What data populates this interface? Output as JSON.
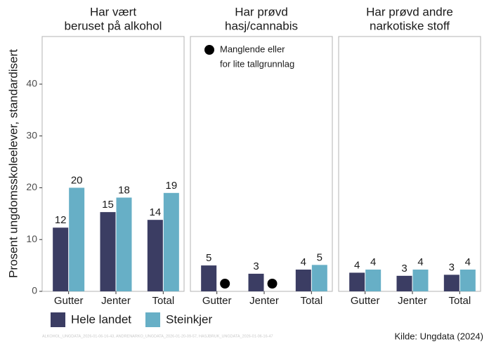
{
  "chart_data": [
    {
      "type": "bar",
      "title": [
        "Har vært",
        "beruset på alkohol"
      ],
      "categories": [
        "Gutter",
        "Jenter",
        "Total"
      ],
      "series": [
        {
          "name": "Hele landet",
          "color": "#3b3d63",
          "values": [
            12.3,
            15.3,
            13.8
          ],
          "value_labels": [
            "12",
            "15",
            "14"
          ]
        },
        {
          "name": "Steinkjer",
          "color": "#67afc6",
          "values": [
            20,
            18.1,
            19
          ],
          "value_labels": [
            "20",
            "18",
            "19"
          ]
        }
      ],
      "ylim": [
        0,
        49.2
      ],
      "yticks": [
        0,
        10,
        20,
        30,
        40
      ]
    },
    {
      "type": "bar",
      "title": [
        "Har prøvd",
        "hasj/cannabis"
      ],
      "categories": [
        "Gutter",
        "Jenter",
        "Total"
      ],
      "series": [
        {
          "name": "Hele landet",
          "color": "#3b3d63",
          "values": [
            5.0,
            3.4,
            4.2
          ],
          "value_labels": [
            "5",
            "3",
            "4"
          ]
        },
        {
          "name": "Steinkjer",
          "color": "#67afc6",
          "values": [
            null,
            null,
            5.1
          ],
          "value_labels": [
            null,
            null,
            "5"
          ]
        }
      ],
      "annotation": [
        "Manglende eller",
        "for lite tallgrunnlag"
      ],
      "ylim": [
        0,
        49.2
      ],
      "yticks": [
        0,
        10,
        20,
        30,
        40
      ]
    },
    {
      "type": "bar",
      "title": [
        "Har prøvd andre",
        "narkotiske stoff"
      ],
      "categories": [
        "Gutter",
        "Jenter",
        "Total"
      ],
      "series": [
        {
          "name": "Hele landet",
          "color": "#3b3d63",
          "values": [
            3.6,
            3.0,
            3.2
          ],
          "value_labels": [
            "4",
            "3",
            "3"
          ]
        },
        {
          "name": "Steinkjer",
          "color": "#67afc6",
          "values": [
            4.2,
            4.2,
            4.2
          ],
          "value_labels": [
            "4",
            "4",
            "4"
          ]
        }
      ],
      "ylim": [
        0,
        49.2
      ],
      "yticks": [
        0,
        10,
        20,
        30,
        40
      ]
    }
  ],
  "y_label": "Prosent ungdomsskoleelever, standardisert",
  "caption": "Kilde: Ungdata (2024)",
  "footnote": "ALKOHOL_UNGDATA_2026-01-06-16-43, ANDRENARKO_UNGDATA_2026-01-20-09-57, HASJBRUK_UNGDATA_2026-01-06-16-47"
}
